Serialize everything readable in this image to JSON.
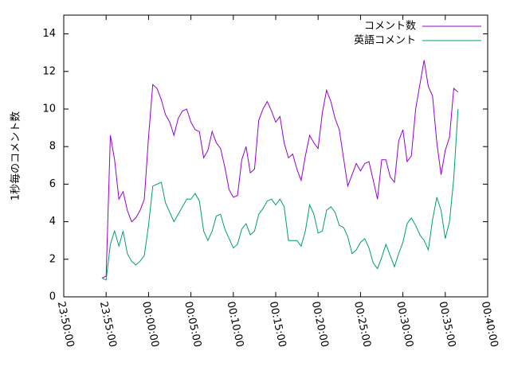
{
  "chart_data": {
    "type": "line",
    "ylabel": "1秒毎のコメント数",
    "x": [
      "23:54:30",
      "23:55:00",
      "23:55:30",
      "23:56:00",
      "23:56:30",
      "23:57:00",
      "23:57:30",
      "23:58:00",
      "23:58:30",
      "23:59:00",
      "23:59:30",
      "00:00:00",
      "00:00:30",
      "00:01:00",
      "00:01:30",
      "00:02:00",
      "00:02:30",
      "00:03:00",
      "00:03:30",
      "00:04:00",
      "00:04:30",
      "00:05:00",
      "00:05:30",
      "00:06:00",
      "00:06:30",
      "00:07:00",
      "00:07:30",
      "00:08:00",
      "00:08:30",
      "00:09:00",
      "00:09:30",
      "00:10:00",
      "00:10:30",
      "00:11:00",
      "00:11:30",
      "00:12:00",
      "00:12:30",
      "00:13:00",
      "00:13:30",
      "00:14:00",
      "00:14:30",
      "00:15:00",
      "00:15:30",
      "00:16:00",
      "00:16:30",
      "00:17:00",
      "00:17:30",
      "00:18:00",
      "00:18:30",
      "00:19:00",
      "00:19:30",
      "00:20:00",
      "00:20:30",
      "00:21:00",
      "00:21:30",
      "00:22:00",
      "00:22:30",
      "00:23:00",
      "00:23:30",
      "00:24:00",
      "00:24:30",
      "00:25:00",
      "00:25:30",
      "00:26:00",
      "00:26:30",
      "00:27:00",
      "00:27:30",
      "00:28:00",
      "00:28:30",
      "00:29:00",
      "00:29:30",
      "00:30:00",
      "00:30:30",
      "00:31:00",
      "00:31:30",
      "00:32:00",
      "00:32:30",
      "00:33:00",
      "00:33:30",
      "00:34:00",
      "00:34:30",
      "00:35:00",
      "00:35:30",
      "00:36:00",
      "00:36:30"
    ],
    "series": [
      {
        "name": "コメント数",
        "color": "#9400d3",
        "values": [
          1.0,
          1.1,
          8.6,
          7.3,
          5.2,
          5.6,
          4.6,
          4.0,
          4.2,
          4.6,
          5.2,
          8.5,
          11.3,
          11.1,
          10.5,
          9.7,
          9.3,
          8.6,
          9.5,
          9.9,
          10.0,
          9.3,
          8.9,
          8.8,
          7.4,
          7.8,
          8.8,
          8.2,
          7.9,
          6.9,
          5.7,
          5.3,
          5.4,
          7.3,
          8.0,
          6.6,
          6.8,
          9.4,
          10.0,
          10.4,
          9.9,
          9.3,
          9.6,
          8.2,
          7.4,
          7.6,
          6.8,
          6.2,
          7.5,
          8.6,
          8.2,
          7.9,
          9.8,
          11.0,
          10.4,
          9.5,
          8.9,
          7.4,
          5.9,
          6.5,
          7.1,
          6.7,
          7.1,
          7.2,
          6.2,
          5.2,
          7.3,
          7.3,
          6.4,
          6.1,
          8.3,
          8.9,
          7.2,
          7.5,
          10.0,
          11.3,
          12.6,
          11.2,
          10.7,
          8.2,
          6.5,
          7.8,
          8.5,
          11.1,
          10.9
        ]
      },
      {
        "name": "英語コメント",
        "color": "#009e73",
        "values": [
          1.0,
          0.9,
          2.8,
          3.5,
          2.7,
          3.5,
          2.3,
          1.9,
          1.7,
          1.9,
          2.2,
          3.8,
          5.9,
          6.0,
          6.1,
          5.0,
          4.5,
          4.0,
          4.4,
          4.8,
          5.2,
          5.2,
          5.5,
          5.1,
          3.5,
          3.0,
          3.5,
          4.3,
          4.4,
          3.6,
          3.1,
          2.6,
          2.8,
          3.6,
          3.9,
          3.3,
          3.5,
          4.4,
          4.7,
          5.1,
          5.2,
          4.9,
          5.2,
          4.8,
          3.0,
          3.0,
          3.0,
          2.7,
          3.5,
          4.9,
          4.4,
          3.4,
          3.5,
          4.6,
          4.8,
          4.5,
          3.8,
          3.7,
          3.2,
          2.3,
          2.5,
          2.9,
          3.1,
          2.6,
          1.8,
          1.5,
          2.1,
          2.8,
          2.2,
          1.6,
          2.3,
          2.9,
          3.9,
          4.2,
          3.8,
          3.3,
          3.0,
          2.5,
          4.1,
          5.3,
          4.6,
          3.1,
          4.0,
          6.3,
          10.0
        ]
      }
    ],
    "xlim": [
      "23:50:00",
      "00:40:00"
    ],
    "xticks": [
      "23:50:00",
      "23:55:00",
      "00:00:00",
      "00:05:00",
      "00:10:00",
      "00:15:00",
      "00:20:00",
      "00:25:00",
      "00:30:00",
      "00:35:00",
      "00:40:00"
    ],
    "ylim": [
      0,
      15
    ],
    "yticks": [
      0,
      2,
      4,
      6,
      8,
      10,
      12,
      14
    ],
    "legend": "top-right"
  }
}
